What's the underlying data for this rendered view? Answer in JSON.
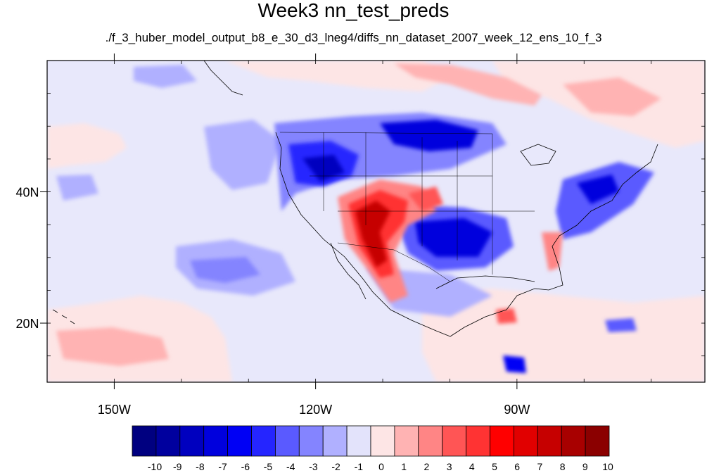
{
  "title": "Week3 nn_test_preds",
  "subtitle": "./f_3_huber_model_output_b8_e_30_d3_lneg4/diffs_nn_dataset_2007_week_12_ens_10_f_3",
  "map": {
    "projection": "cylindrical-equidistant",
    "lon_range": [
      -160,
      -62
    ],
    "lat_range": [
      11,
      60
    ],
    "x_ticks": [
      {
        "lon": -150,
        "label": "150W"
      },
      {
        "lon": -120,
        "label": "120W"
      },
      {
        "lon": -90,
        "label": "90W"
      }
    ],
    "y_ticks": [
      {
        "lat": 40,
        "label": "40N"
      },
      {
        "lat": 20,
        "label": "20N"
      }
    ]
  },
  "colorbar": {
    "labels": [
      "-10",
      "-9",
      "-8",
      "-7",
      "-6",
      "-5",
      "-4",
      "-3",
      "-2",
      "-1",
      "0",
      "1",
      "2",
      "3",
      "4",
      "5",
      "6",
      "7",
      "8",
      "9",
      "10"
    ],
    "colors": [
      "#000080",
      "#00009e",
      "#0000bf",
      "#0000dd",
      "#0000f5",
      "#2525ff",
      "#5a5aff",
      "#8484ff",
      "#b0b0ff",
      "#e3e3fb",
      "#fde5e5",
      "#ffb3b3",
      "#ff8585",
      "#ff5555",
      "#ff3333",
      "#ff0000",
      "#e10000",
      "#c60000",
      "#a80000",
      "#8b0000"
    ]
  },
  "colors": {
    "background": "#e8e8fb",
    "land_outline": "#000000"
  }
}
